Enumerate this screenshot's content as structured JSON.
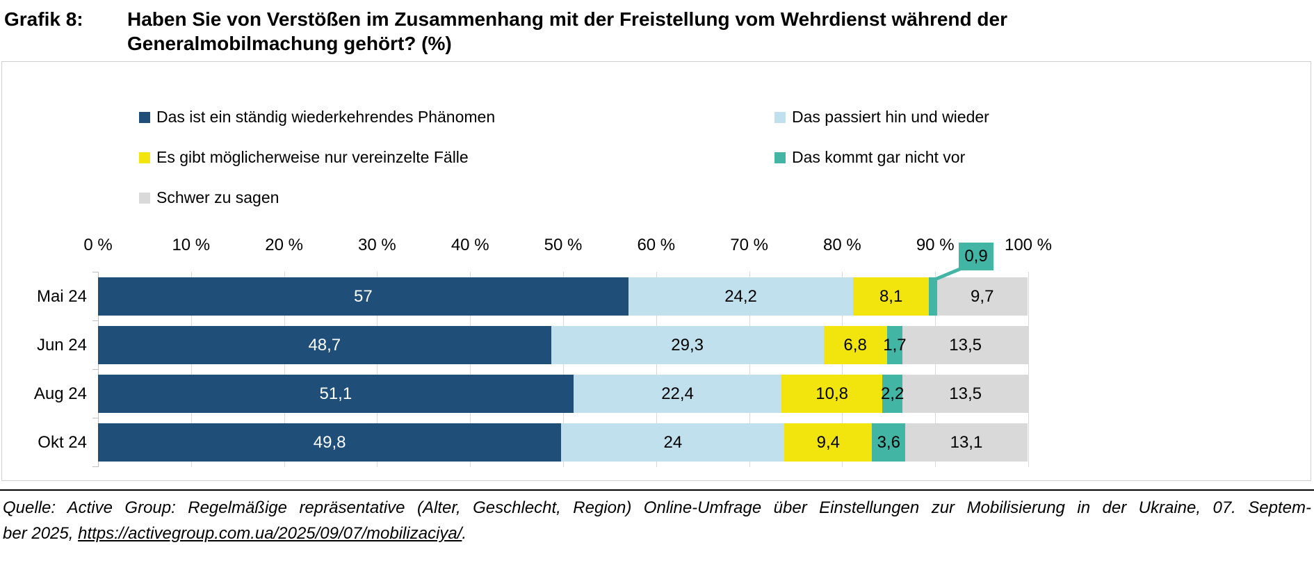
{
  "title": {
    "prefix": "Grafik 8:",
    "text": "Haben Sie von Verstößen im Zusammenhang mit der Freistellung vom Wehrdienst während der Generalmobilmachung gehört? (%)"
  },
  "legend": {
    "items": [
      {
        "label": "Das ist ein ständig wiederkehrendes Phänomen",
        "color": "#1F4E79"
      },
      {
        "label": "Das passiert hin und wieder",
        "color": "#BFE0EC"
      },
      {
        "label": "Es gibt möglicherweise nur vereinzelte Fälle",
        "color": "#F2E40D"
      },
      {
        "label": "Das kommt gar nicht vor",
        "color": "#43B5A5"
      },
      {
        "label": "Schwer zu sagen",
        "color": "#D9D9D9"
      }
    ]
  },
  "chart_data": {
    "type": "bar",
    "orientation": "horizontal-stacked",
    "title": "Haben Sie von Verstößen im Zusammenhang mit der Freistellung vom Wehrdienst während der Generalmobilmachung gehört? (%)",
    "xlabel": "",
    "ylabel": "",
    "xlim": [
      0,
      100
    ],
    "grid": "vertical",
    "legend_position": "top",
    "axis_ticks": [
      "0 %",
      "10 %",
      "20 %",
      "30 %",
      "40 %",
      "50 %",
      "60 %",
      "70 %",
      "80 %",
      "90 %",
      "100 %"
    ],
    "categories": [
      "Mai 24",
      "Jun 24",
      "Aug 24",
      "Okt 24"
    ],
    "series": [
      {
        "name": "Das ist ein ständig wiederkehrendes Phänomen",
        "color": "#1F4E79",
        "values": [
          57,
          48.7,
          51.1,
          49.8
        ],
        "labels": [
          "57",
          "48,7",
          "51,1",
          "49,8"
        ]
      },
      {
        "name": "Das passiert hin und wieder",
        "color": "#BFE0EC",
        "values": [
          24.2,
          29.3,
          22.4,
          24
        ],
        "labels": [
          "24,2",
          "29,3",
          "22,4",
          "24"
        ]
      },
      {
        "name": "Es gibt möglicherweise nur vereinzelte Fälle",
        "color": "#F2E40D",
        "values": [
          8.1,
          6.8,
          10.8,
          9.4
        ],
        "labels": [
          "8,1",
          "6,8",
          "10,8",
          "9,4"
        ]
      },
      {
        "name": "Das kommt gar nicht vor",
        "color": "#43B5A5",
        "values": [
          0.9,
          1.7,
          2.2,
          3.6
        ],
        "labels": [
          "",
          "1,7",
          "2,2",
          "3,6"
        ]
      },
      {
        "name": "Schwer zu sagen",
        "color": "#D9D9D9",
        "values": [
          9.7,
          13.5,
          13.5,
          13.1
        ],
        "labels": [
          "9,7",
          "13,5",
          "13,5",
          "13,1"
        ]
      }
    ],
    "callout": {
      "label": "0,9",
      "series": "Das kommt gar nicht vor",
      "category": "Mai 24"
    }
  },
  "source": {
    "line1": "Quelle: Active Group: Regelmäßige repräsentative (Alter, Geschlecht, Region) Online-Umfrage über Einstellungen zur Mobilisierung in der Ukraine, 07. Septem-",
    "line2_prefix": "ber 2025, ",
    "link_text": "https://activegroup.com.ua/2025/09/07/mobilizaciya/",
    "line2_suffix": "."
  }
}
